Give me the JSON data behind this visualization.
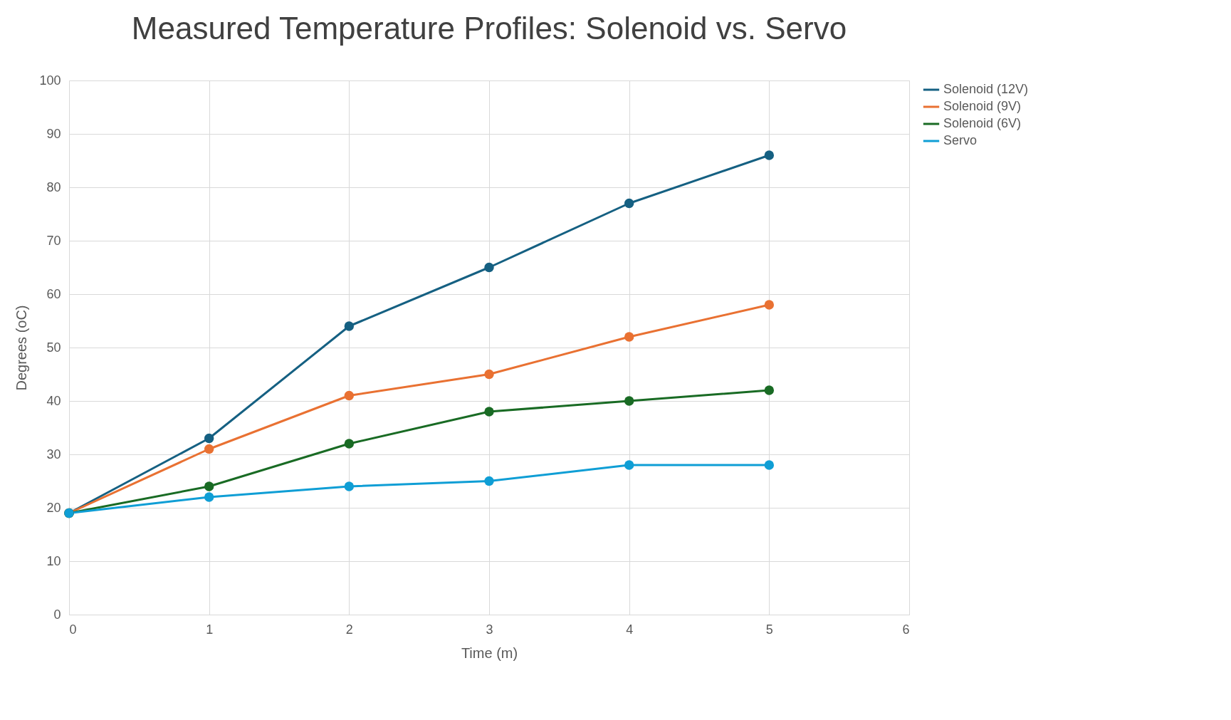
{
  "chart_data": {
    "type": "line",
    "title": "Measured Temperature Profiles: Solenoid vs. Servo",
    "xlabel": "Time (m)",
    "ylabel": "Degrees (oC)",
    "x": [
      0,
      1,
      2,
      3,
      4,
      5
    ],
    "series": [
      {
        "name": "Solenoid (12V)",
        "color": "#156082",
        "values": [
          19,
          33,
          54,
          65,
          77,
          86
        ]
      },
      {
        "name": "Solenoid (9V)",
        "color": "#e97132",
        "values": [
          19,
          31,
          41,
          45,
          52,
          58
        ]
      },
      {
        "name": "Solenoid (6V)",
        "color": "#196b24",
        "values": [
          19,
          24,
          32,
          38,
          40,
          42
        ]
      },
      {
        "name": "Servo",
        "color": "#0f9ed5",
        "values": [
          19,
          22,
          24,
          25,
          28,
          28
        ]
      }
    ],
    "xlim": [
      0,
      6
    ],
    "xticks": [
      0,
      1,
      2,
      3,
      4,
      5,
      6
    ],
    "ylim": [
      0,
      100
    ],
    "yticks": [
      0,
      10,
      20,
      30,
      40,
      50,
      60,
      70,
      80,
      90,
      100
    ],
    "grid": true,
    "legend": "right",
    "marker": "circle",
    "line_style": "solid"
  }
}
